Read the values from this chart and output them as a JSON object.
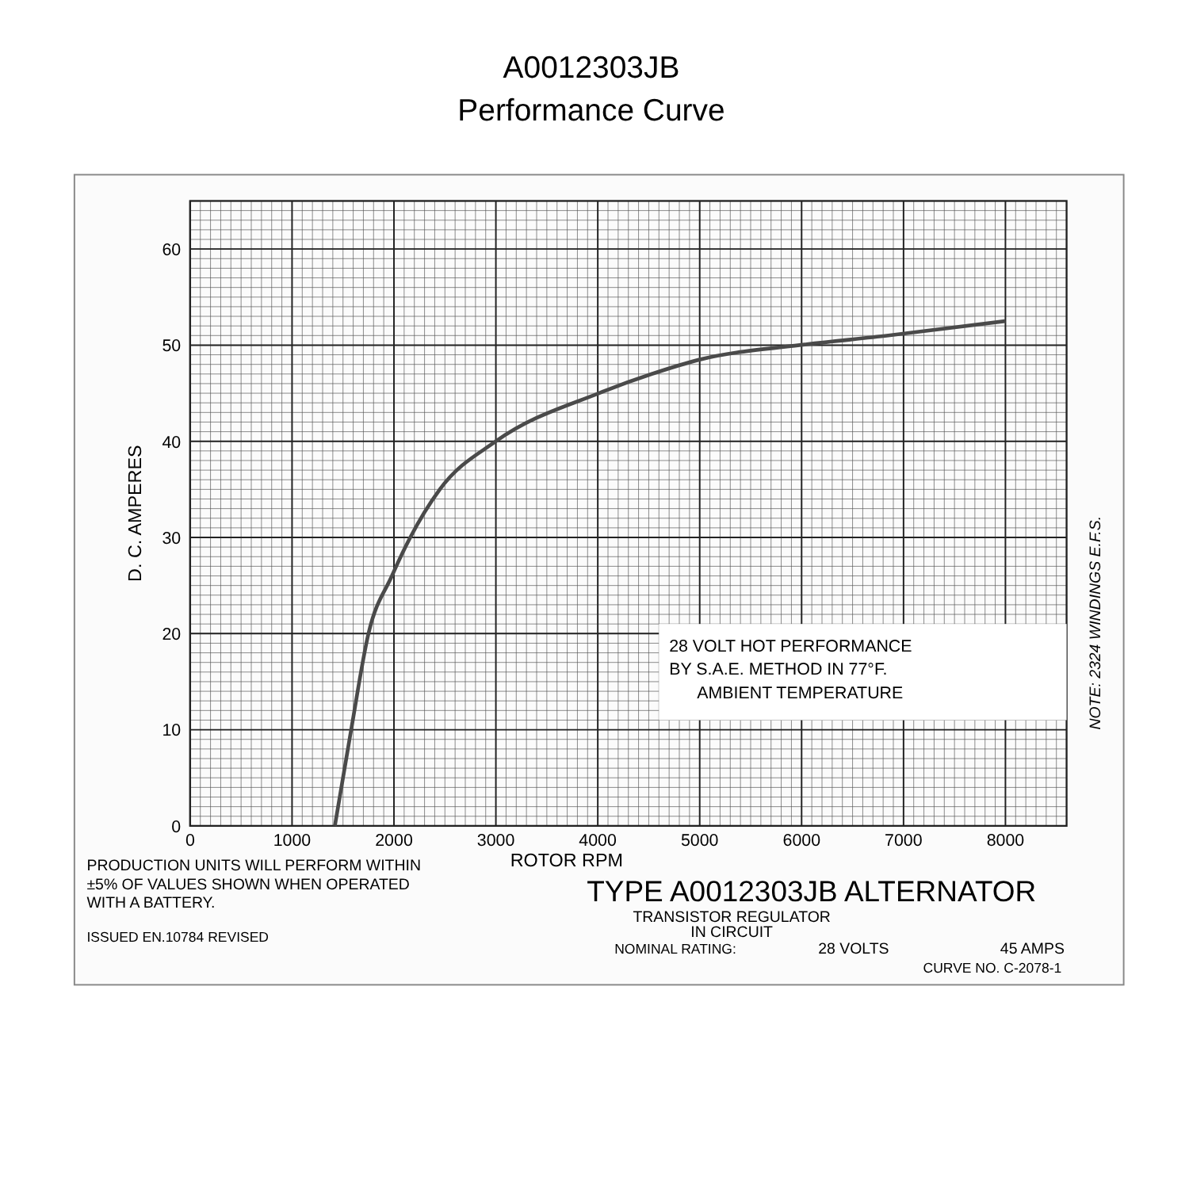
{
  "chart_data": {
    "type": "line",
    "title": "A0012303JB",
    "subtitle": "Performance Curve",
    "xlabel": "ROTOR RPM",
    "ylabel": "D. C. AMPERES",
    "x": [
      1420,
      1580,
      1750,
      1980,
      2160,
      2450,
      3000,
      4010,
      4530,
      5000,
      5980,
      6850,
      8000
    ],
    "series": [
      {
        "color": "#4a4a4a",
        "values": [
          0,
          10,
          20,
          26,
          30,
          35,
          40,
          45,
          47,
          48.5,
          50,
          51,
          52.5
        ]
      }
    ],
    "xlim": [
      0,
      8600
    ],
    "ylim": [
      0,
      65
    ],
    "xticks": [
      0,
      1000,
      2000,
      3000,
      4000,
      5000,
      6000,
      7000,
      8000
    ],
    "yticks": [
      0,
      10,
      20,
      30,
      40,
      50,
      60
    ],
    "grid": true,
    "marker": "none",
    "line_style": "solid",
    "annotations": [
      "28 VOLT HOT PERFORMANCE\nBY S.A.E. METHOD IN 77°F.\nAMBIENT TEMPERATURE",
      "NOTE: 2324 WINDINGS E.F.S.",
      "PRODUCTION UNITS WILL PERFORM WITHIN\n±5% OF VALUES SHOWN WHEN OPERATED\nWITH A BATTERY.",
      "ISSUED EN.10784 REVISED",
      "TYPE A0012303JB ALTERNATOR",
      "TRANSISTOR REGULATOR\nIN CIRCUIT",
      "NOMINAL RATING:",
      "28 VOLTS",
      "45 AMPS",
      "CURVE NO. C-2078-1"
    ]
  }
}
